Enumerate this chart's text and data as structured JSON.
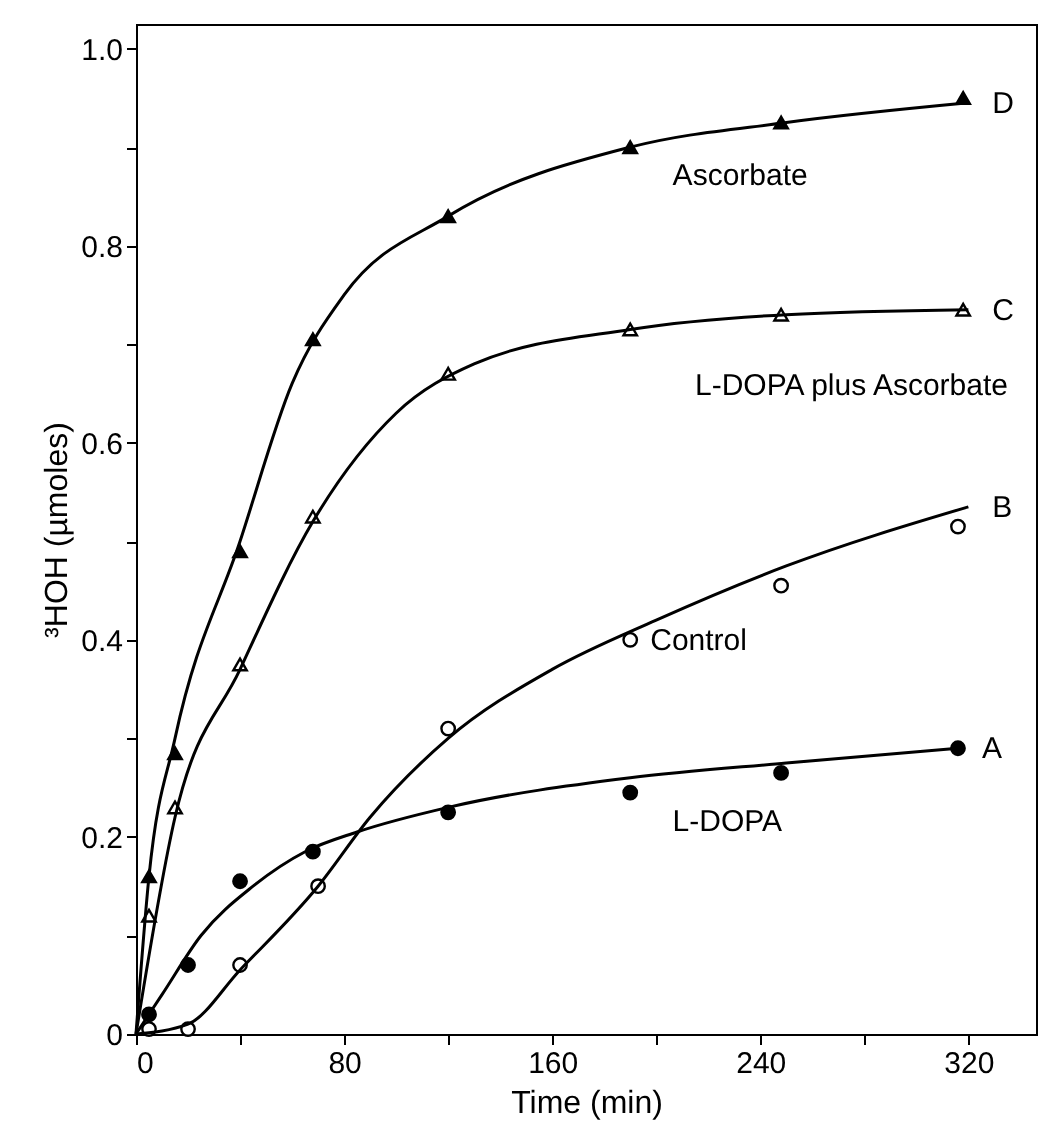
{
  "chart_data": {
    "type": "scatter",
    "xlabel": "Time (min)",
    "ylabel": "³HOH (µmoles)",
    "xlim": [
      0,
      346
    ],
    "ylim": [
      0,
      1.025
    ],
    "xticks": [
      0,
      {
        "value": 40,
        "label": null
      },
      80,
      {
        "value": 120,
        "label": null
      },
      160,
      {
        "value": 200,
        "label": null
      },
      240,
      {
        "value": 280,
        "label": null
      },
      320
    ],
    "yticks": [
      0,
      {
        "value": 0.1,
        "label": null
      },
      {
        "value": 0.2,
        "label": "0.2"
      },
      {
        "value": 0.3,
        "label": null
      },
      {
        "value": 0.4,
        "label": "0.4"
      },
      {
        "value": 0.5,
        "label": null
      },
      {
        "value": 0.6,
        "label": "0.6"
      },
      {
        "value": 0.7,
        "label": null
      },
      {
        "value": 0.8,
        "label": "0.8"
      },
      {
        "value": 0.9,
        "label": null
      },
      {
        "value": 1.0,
        "label": "1.0"
      }
    ],
    "grid": false,
    "series": [
      {
        "name": "Ascorbate",
        "marker": "triangle",
        "color": "#000000",
        "x": [
          5,
          15,
          40,
          68,
          120,
          190,
          248,
          318
        ],
        "values": [
          0.16,
          0.285,
          0.49,
          0.705,
          0.83,
          0.9,
          0.925,
          0.95
        ]
      },
      {
        "name": "L-DOPA plus Ascorbate",
        "marker": "triangle",
        "color": "#000000",
        "x": [
          5,
          15,
          40,
          68,
          120,
          190,
          248,
          318
        ],
        "values": [
          0.12,
          0.23,
          0.375,
          0.525,
          0.67,
          0.715,
          0.73,
          0.735
        ]
      },
      {
        "name": "Control",
        "marker": "circle",
        "color": "#000000",
        "x": [
          5,
          20,
          40,
          70,
          120,
          190,
          248,
          316
        ],
        "values": [
          0.005,
          0.005,
          0.07,
          0.15,
          0.31,
          0.4,
          0.455,
          0.515
        ]
      },
      {
        "name": "L-DOPA",
        "marker": "circle",
        "color": "#000000",
        "x": [
          5,
          20,
          40,
          68,
          120,
          190,
          248,
          316
        ],
        "values": [
          0.02,
          0.07,
          0.155,
          0.185,
          0.225,
          0.245,
          0.265,
          0.29
        ]
      },
      {
        "type": "line",
        "color": "#000000",
        "x": [
          0,
          5,
          15,
          40,
          60,
          80,
          120,
          190,
          250,
          320
        ],
        "values": [
          0,
          0.16,
          0.3,
          0.5,
          0.66,
          0.75,
          0.83,
          0.9,
          0.925,
          0.945
        ]
      },
      {
        "type": "line",
        "color": "#000000",
        "x": [
          0,
          15,
          40,
          68,
          100,
          130,
          190,
          250,
          320
        ],
        "values": [
          0,
          0.22,
          0.37,
          0.52,
          0.63,
          0.68,
          0.715,
          0.73,
          0.735
        ]
      },
      {
        "type": "line",
        "color": "#000000",
        "x": [
          0,
          20,
          40,
          70,
          90,
          120,
          160,
          200,
          250,
          320
        ],
        "values": [
          0,
          0.01,
          0.065,
          0.15,
          0.22,
          0.3,
          0.37,
          0.42,
          0.475,
          0.535
        ]
      },
      {
        "type": "line",
        "color": "#000000",
        "x": [
          0,
          10,
          25,
          45,
          65,
          85,
          120,
          190,
          250,
          316
        ],
        "values": [
          0,
          0.04,
          0.1,
          0.15,
          0.185,
          0.205,
          0.23,
          0.26,
          0.275,
          0.29
        ]
      }
    ],
    "annotations": [
      "D",
      "C",
      "B",
      "A"
    ]
  }
}
